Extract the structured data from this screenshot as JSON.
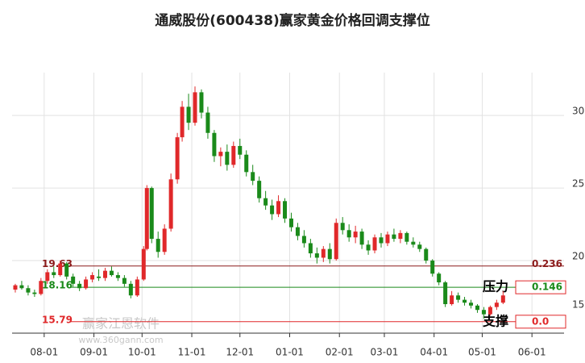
{
  "chart_data": {
    "type": "candlestick",
    "title": "通威股份(600438)赢家黄金价格回调支撑位",
    "watermark": [
      "赢家江恩软件",
      "www.360gann.com"
    ],
    "up_color": "#e0282a",
    "down_color": "#1a8a1a",
    "xlim": [
      -20,
      324
    ],
    "ylim": [
      15,
      32.4
    ],
    "yticks": [
      15,
      20,
      25,
      30
    ],
    "xticks": [
      {
        "value": 0,
        "label": "08-01"
      },
      {
        "value": 31,
        "label": "09-01"
      },
      {
        "value": 61,
        "label": "10-01"
      },
      {
        "value": 92,
        "label": "11-01"
      },
      {
        "value": 122,
        "label": "12-01"
      },
      {
        "value": 153,
        "label": "01-01"
      },
      {
        "value": 184,
        "label": "02-01"
      },
      {
        "value": 212,
        "label": "03-01"
      },
      {
        "value": 243,
        "label": "04-01"
      },
      {
        "value": 273,
        "label": "05-01"
      },
      {
        "value": 304,
        "label": "06-01"
      }
    ],
    "grid": true,
    "x": [
      -18,
      -14,
      -10,
      -6,
      -2,
      2,
      6,
      10,
      14,
      18,
      22,
      26,
      30,
      34,
      38,
      42,
      46,
      50,
      54,
      58,
      62,
      64,
      67,
      71,
      75,
      79,
      83,
      86,
      90,
      94,
      98,
      102,
      106,
      110,
      114,
      118,
      122,
      126,
      130,
      134,
      138,
      142,
      146,
      150,
      154,
      158,
      162,
      166,
      170,
      174,
      178,
      182,
      186,
      190,
      194,
      198,
      202,
      206,
      210,
      214,
      218,
      222,
      226,
      230,
      234,
      238,
      242,
      246,
      250,
      254,
      258,
      262,
      266,
      270,
      274,
      278,
      282,
      286
    ],
    "open": [
      18.0,
      18.3,
      18.1,
      17.8,
      17.7,
      18.6,
      19.2,
      19.0,
      19.8,
      18.9,
      18.4,
      18.1,
      18.7,
      18.9,
      18.8,
      19.3,
      19.0,
      18.8,
      18.4,
      17.6,
      18.7,
      20.8,
      25.0,
      21.5,
      20.6,
      22.2,
      25.6,
      28.5,
      30.6,
      29.5,
      31.6,
      30.2,
      28.8,
      27.2,
      27.5,
      26.6,
      27.9,
      27.3,
      26.1,
      25.5,
      24.3,
      23.8,
      23.2,
      24.1,
      22.9,
      22.3,
      21.7,
      21.2,
      20.5,
      20.2,
      20.8,
      20.1,
      22.6,
      22.1,
      21.6,
      22.0,
      21.1,
      20.7,
      21.6,
      21.2,
      21.8,
      21.5,
      21.9,
      21.3,
      21.1,
      20.8,
      20.0,
      19.1,
      18.5,
      17.0,
      17.6,
      17.3,
      17.1,
      16.9,
      16.6,
      16.3,
      16.8,
      17.1
    ],
    "high": [
      18.4,
      18.6,
      18.3,
      18.0,
      18.8,
      19.4,
      19.6,
      20.0,
      19.9,
      19.1,
      18.6,
      18.9,
      19.2,
      19.4,
      19.5,
      19.6,
      19.2,
      19.0,
      18.6,
      18.9,
      21.0,
      25.2,
      25.1,
      22.0,
      22.5,
      26.0,
      28.8,
      31.0,
      31.5,
      32.0,
      31.8,
      30.6,
      29.0,
      27.8,
      28.0,
      28.2,
      28.4,
      27.6,
      26.6,
      25.8,
      24.8,
      24.2,
      24.5,
      24.3,
      23.3,
      22.6,
      22.1,
      21.5,
      20.9,
      21.0,
      21.2,
      22.9,
      23.0,
      22.5,
      22.4,
      22.2,
      21.4,
      21.8,
      21.9,
      22.0,
      22.2,
      22.1,
      22.0,
      21.6,
      21.3,
      20.9,
      20.1,
      19.2,
      18.6,
      17.9,
      17.8,
      17.5,
      17.3,
      17.0,
      16.8,
      16.9,
      17.3,
      17.9
    ],
    "low": [
      17.8,
      18.0,
      17.6,
      17.5,
      17.6,
      18.4,
      18.8,
      18.9,
      18.7,
      18.2,
      17.9,
      18.0,
      18.5,
      18.6,
      18.6,
      18.9,
      18.6,
      18.2,
      17.4,
      17.5,
      18.6,
      20.7,
      21.2,
      20.2,
      20.4,
      22.0,
      25.3,
      28.2,
      29.0,
      29.3,
      29.8,
      28.4,
      26.8,
      26.5,
      26.2,
      26.4,
      27.0,
      25.8,
      25.2,
      24.0,
      23.5,
      22.8,
      23.0,
      22.6,
      22.0,
      21.4,
      20.9,
      20.2,
      19.8,
      19.9,
      19.8,
      20.0,
      21.8,
      21.3,
      21.2,
      20.8,
      20.4,
      20.5,
      20.9,
      21.0,
      21.3,
      21.2,
      21.1,
      20.9,
      20.6,
      19.8,
      18.9,
      18.3,
      16.8,
      16.9,
      17.1,
      16.9,
      16.7,
      16.4,
      16.0,
      16.2,
      16.6,
      17.0
    ],
    "close": [
      18.3,
      18.1,
      17.8,
      17.7,
      18.6,
      19.2,
      19.0,
      19.8,
      18.9,
      18.4,
      18.1,
      18.7,
      19.0,
      18.8,
      19.3,
      19.0,
      18.8,
      18.4,
      17.6,
      18.7,
      20.8,
      25.0,
      21.5,
      20.6,
      22.2,
      25.6,
      28.5,
      30.6,
      29.5,
      31.6,
      30.2,
      28.8,
      27.2,
      27.5,
      26.6,
      27.9,
      27.3,
      26.1,
      25.5,
      24.3,
      23.8,
      23.2,
      24.1,
      22.9,
      22.3,
      21.7,
      21.2,
      20.5,
      20.2,
      20.8,
      20.1,
      22.6,
      22.1,
      21.6,
      22.0,
      21.1,
      20.7,
      21.6,
      21.2,
      21.8,
      21.5,
      21.9,
      21.3,
      21.1,
      20.8,
      20.0,
      19.1,
      18.5,
      17.0,
      17.6,
      17.3,
      17.1,
      16.9,
      16.6,
      16.3,
      16.8,
      17.1,
      17.6
    ],
    "levels": [
      {
        "value": 19.63,
        "ratio": "0.236",
        "color": "#8b1a1a"
      },
      {
        "value": 18.16,
        "ratio": "0.146",
        "color": "#1a8a1a",
        "tag": "压力"
      },
      {
        "value": 15.79,
        "ratio": "0.0",
        "color": "#e0282a",
        "tag": "支撑"
      }
    ]
  }
}
